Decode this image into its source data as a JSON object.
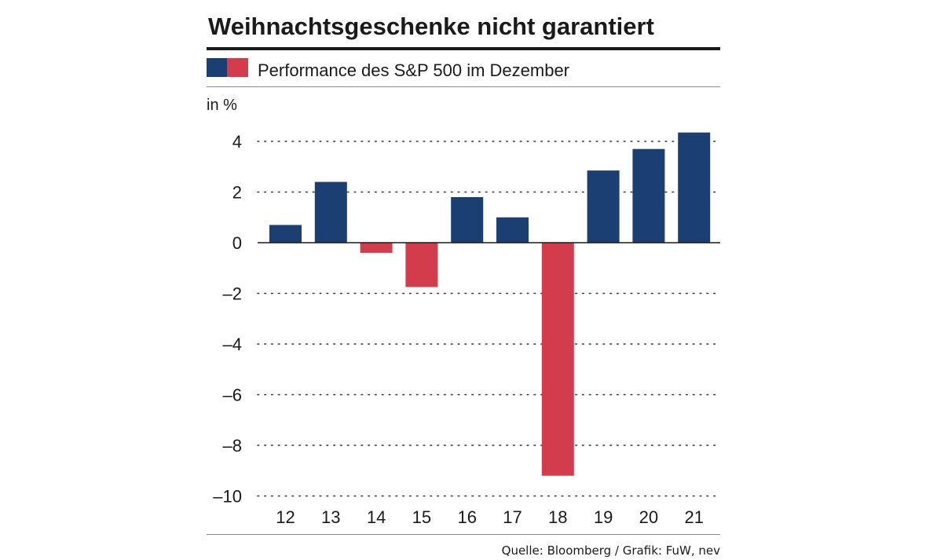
{
  "chart_data": {
    "type": "bar",
    "title": "Weihnachtsgeschenke nicht garantiert",
    "legend_label": "Performance des S&P 500 im Dezember",
    "legend_colors": [
      "#1b3f72",
      "#d33c4a"
    ],
    "ylabel": "in %",
    "xlabel": "",
    "categories": [
      "12",
      "13",
      "14",
      "15",
      "16",
      "17",
      "18",
      "19",
      "20",
      "21"
    ],
    "values": [
      0.7,
      2.4,
      -0.4,
      -1.75,
      1.8,
      1.0,
      -9.2,
      2.85,
      3.7,
      4.35
    ],
    "ylim": [
      -10,
      4.5
    ],
    "yticks": [
      4,
      2,
      0,
      -2,
      -4,
      -6,
      -8,
      -10
    ],
    "ytick_labels": [
      "4",
      "2",
      "0",
      "–2",
      "–4",
      "–6",
      "–8",
      "–10"
    ],
    "grid": true,
    "colors": {
      "positive": "#1b3f72",
      "negative": "#d33c4a",
      "text": "#1a1a1a",
      "rule": "#1a1a1a",
      "grid": "#333333"
    },
    "source": "Quelle: Bloomberg / Grafik: FuW, nev"
  }
}
